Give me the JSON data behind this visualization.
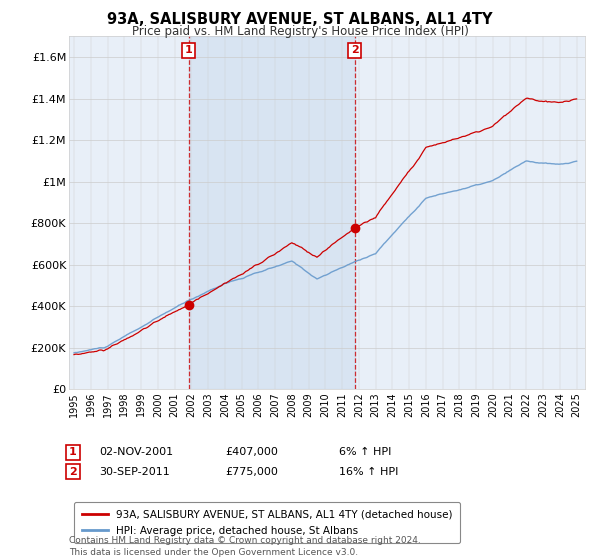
{
  "title": "93A, SALISBURY AVENUE, ST ALBANS, AL1 4TY",
  "subtitle": "Price paid vs. HM Land Registry's House Price Index (HPI)",
  "ylim": [
    0,
    1700000
  ],
  "yticks": [
    0,
    200000,
    400000,
    600000,
    800000,
    1000000,
    1200000,
    1400000,
    1600000
  ],
  "ytick_labels": [
    "£0",
    "£200K",
    "£400K",
    "£600K",
    "£800K",
    "£1M",
    "£1.2M",
    "£1.4M",
    "£1.6M"
  ],
  "sale1_year": 2001.84,
  "sale1_price": 407000,
  "sale1_label": "1",
  "sale1_date": "02-NOV-2001",
  "sale1_hpi": "6% ↑ HPI",
  "sale2_year": 2011.75,
  "sale2_price": 775000,
  "sale2_label": "2",
  "sale2_date": "30-SEP-2011",
  "sale2_hpi": "16% ↑ HPI",
  "property_color": "#cc0000",
  "hpi_color": "#6699cc",
  "property_label": "93A, SALISBURY AVENUE, ST ALBANS, AL1 4TY (detached house)",
  "hpi_label": "HPI: Average price, detached house, St Albans",
  "footer": "Contains HM Land Registry data © Crown copyright and database right 2024.\nThis data is licensed under the Open Government Licence v3.0.",
  "background_color": "#ffffff",
  "plot_bg_color": "#e8eff8"
}
